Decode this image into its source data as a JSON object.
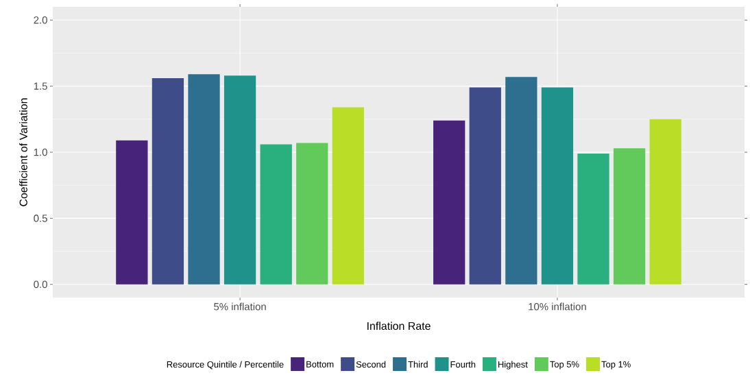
{
  "chart_data": {
    "type": "bar",
    "xlabel": "Inflation Rate",
    "ylabel": "Coefficient of Variation",
    "legend_title": "Resource Quintile / Percentile",
    "categories": [
      "5% inflation",
      "10% inflation"
    ],
    "series": [
      {
        "name": "Bottom",
        "color": "#48237a",
        "values": [
          1.09,
          1.24
        ]
      },
      {
        "name": "Second",
        "color": "#3e4c8a",
        "values": [
          1.56,
          1.49
        ]
      },
      {
        "name": "Third",
        "color": "#2e6e8e",
        "values": [
          1.59,
          1.57
        ]
      },
      {
        "name": "Fourth",
        "color": "#20928c",
        "values": [
          1.58,
          1.49
        ]
      },
      {
        "name": "Highest",
        "color": "#2aaf7f",
        "values": [
          1.06,
          0.99
        ]
      },
      {
        "name": "Top 5%",
        "color": "#62c95b",
        "values": [
          1.07,
          1.03
        ]
      },
      {
        "name": "Top 1%",
        "color": "#bade28",
        "values": [
          1.34,
          1.25
        ]
      }
    ],
    "ylim": [
      -0.1,
      2.1
    ],
    "yticks": [
      {
        "value": 0,
        "label": "0.0"
      },
      {
        "value": 0.5,
        "label": "0.5"
      },
      {
        "value": 1,
        "label": "1.0"
      },
      {
        "value": 1.5,
        "label": "1.5"
      },
      {
        "value": 2,
        "label": "2.0"
      }
    ],
    "grid": true,
    "legend": "bottom"
  }
}
